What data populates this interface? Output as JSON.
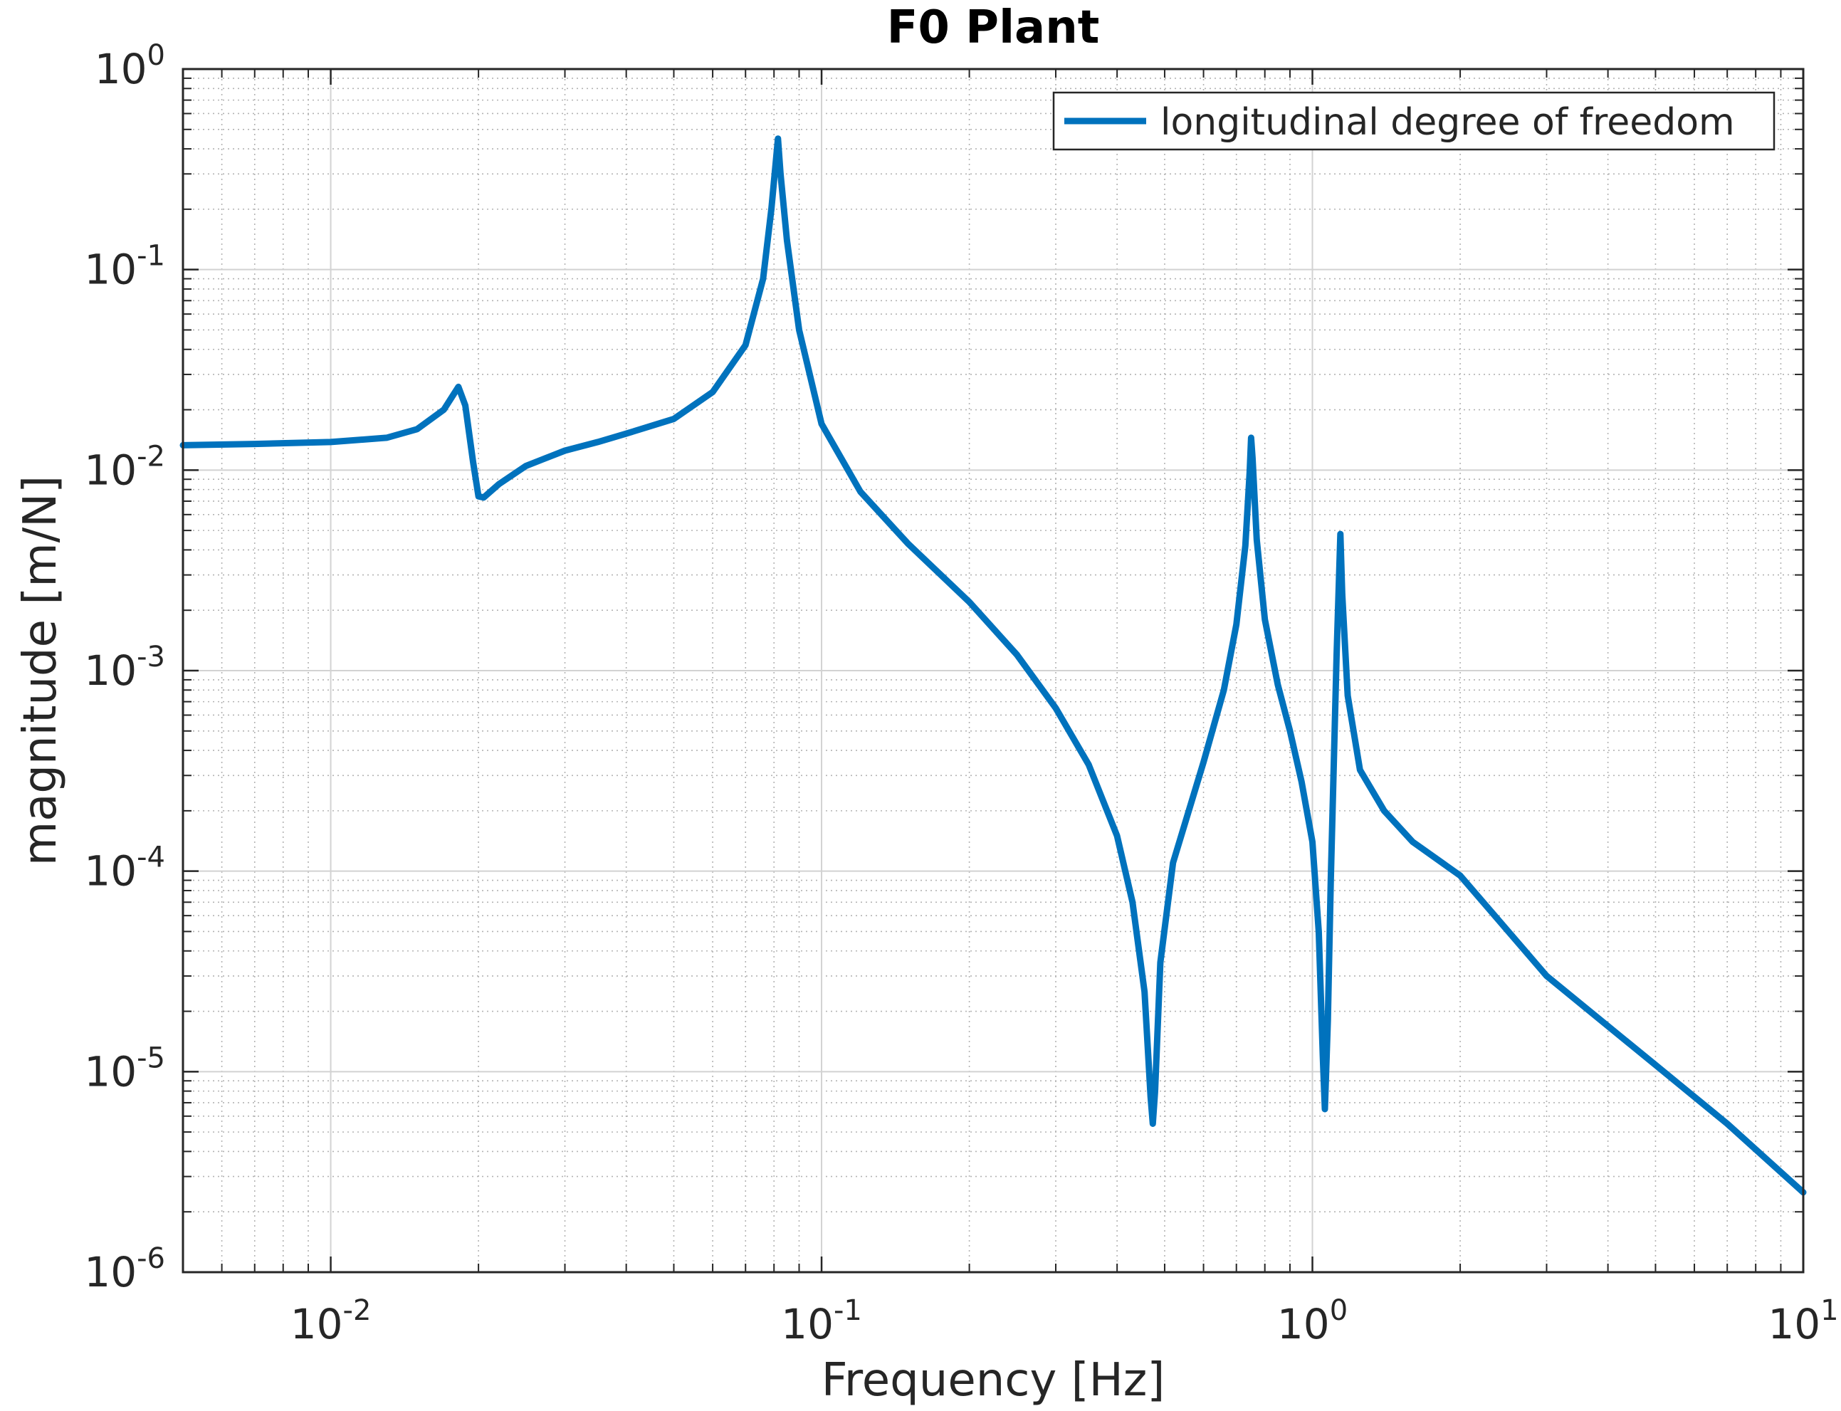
{
  "chart_data": {
    "type": "line",
    "title": "F0 Plant",
    "xlabel": "Frequency [Hz]",
    "ylabel": "magnitude [m/N]",
    "xscale": "log",
    "yscale": "log",
    "xlim": [
      0.005,
      10
    ],
    "ylim": [
      1e-06,
      1
    ],
    "grid": true,
    "minor_grid": true,
    "legend_position": "top-right",
    "x_ticks": [
      {
        "value": 0.01,
        "base": "10",
        "exp": "-2"
      },
      {
        "value": 0.1,
        "base": "10",
        "exp": "-1"
      },
      {
        "value": 1,
        "base": "10",
        "exp": "0"
      },
      {
        "value": 10,
        "base": "10",
        "exp": "1"
      }
    ],
    "y_ticks": [
      {
        "value": 1,
        "base": "10",
        "exp": "0"
      },
      {
        "value": 0.1,
        "base": "10",
        "exp": "-1"
      },
      {
        "value": 0.01,
        "base": "10",
        "exp": "-2"
      },
      {
        "value": 0.001,
        "base": "10",
        "exp": "-3"
      },
      {
        "value": 0.0001,
        "base": "10",
        "exp": "-4"
      },
      {
        "value": 1e-05,
        "base": "10",
        "exp": "-5"
      },
      {
        "value": 1e-06,
        "base": "10",
        "exp": "-6"
      }
    ],
    "series": [
      {
        "name": "longitudinal degree of freedom",
        "color": "#0072BD",
        "points": [
          [
            0.005,
            0.0133
          ],
          [
            0.007,
            0.0135
          ],
          [
            0.01,
            0.0138
          ],
          [
            0.013,
            0.0145
          ],
          [
            0.015,
            0.016
          ],
          [
            0.017,
            0.02
          ],
          [
            0.0182,
            0.026
          ],
          [
            0.0188,
            0.021
          ],
          [
            0.0195,
            0.011
          ],
          [
            0.02,
            0.0074
          ],
          [
            0.0205,
            0.0073
          ],
          [
            0.022,
            0.0085
          ],
          [
            0.025,
            0.0105
          ],
          [
            0.03,
            0.0125
          ],
          [
            0.035,
            0.0138
          ],
          [
            0.04,
            0.0152
          ],
          [
            0.05,
            0.018
          ],
          [
            0.06,
            0.0245
          ],
          [
            0.07,
            0.042
          ],
          [
            0.076,
            0.09
          ],
          [
            0.079,
            0.2
          ],
          [
            0.0815,
            0.45
          ],
          [
            0.0825,
            0.3
          ],
          [
            0.085,
            0.14
          ],
          [
            0.09,
            0.05
          ],
          [
            0.1,
            0.017
          ],
          [
            0.12,
            0.0078
          ],
          [
            0.15,
            0.0043
          ],
          [
            0.2,
            0.0022
          ],
          [
            0.25,
            0.0012
          ],
          [
            0.3,
            0.00065
          ],
          [
            0.35,
            0.00034
          ],
          [
            0.4,
            0.00015
          ],
          [
            0.43,
            7e-05
          ],
          [
            0.455,
            2.5e-05
          ],
          [
            0.468,
            7.5e-06
          ],
          [
            0.473,
            5.5e-06
          ],
          [
            0.478,
            8e-06
          ],
          [
            0.49,
            3.5e-05
          ],
          [
            0.52,
            0.00011
          ],
          [
            0.6,
            0.00035
          ],
          [
            0.66,
            0.0008
          ],
          [
            0.7,
            0.0017
          ],
          [
            0.73,
            0.0042
          ],
          [
            0.745,
            0.0098
          ],
          [
            0.75,
            0.0145
          ],
          [
            0.755,
            0.0115
          ],
          [
            0.77,
            0.0045
          ],
          [
            0.8,
            0.0018
          ],
          [
            0.85,
            0.00085
          ],
          [
            0.9,
            0.0005
          ],
          [
            0.95,
            0.00028
          ],
          [
            1.0,
            0.00014
          ],
          [
            1.03,
            5e-05
          ],
          [
            1.05,
            1.2e-05
          ],
          [
            1.06,
            6.5e-06
          ],
          [
            1.075,
            1.8e-05
          ],
          [
            1.09,
            9e-05
          ],
          [
            1.12,
            0.0012
          ],
          [
            1.14,
            0.0048
          ],
          [
            1.15,
            0.0024
          ],
          [
            1.18,
            0.00075
          ],
          [
            1.25,
            0.00032
          ],
          [
            1.4,
            0.0002
          ],
          [
            1.6,
            0.00014
          ],
          [
            2.0,
            9.5e-05
          ],
          [
            3.0,
            3e-05
          ],
          [
            5.0,
            1.08e-05
          ],
          [
            7.0,
            5.5e-06
          ],
          [
            10.0,
            2.5e-06
          ]
        ]
      }
    ]
  }
}
